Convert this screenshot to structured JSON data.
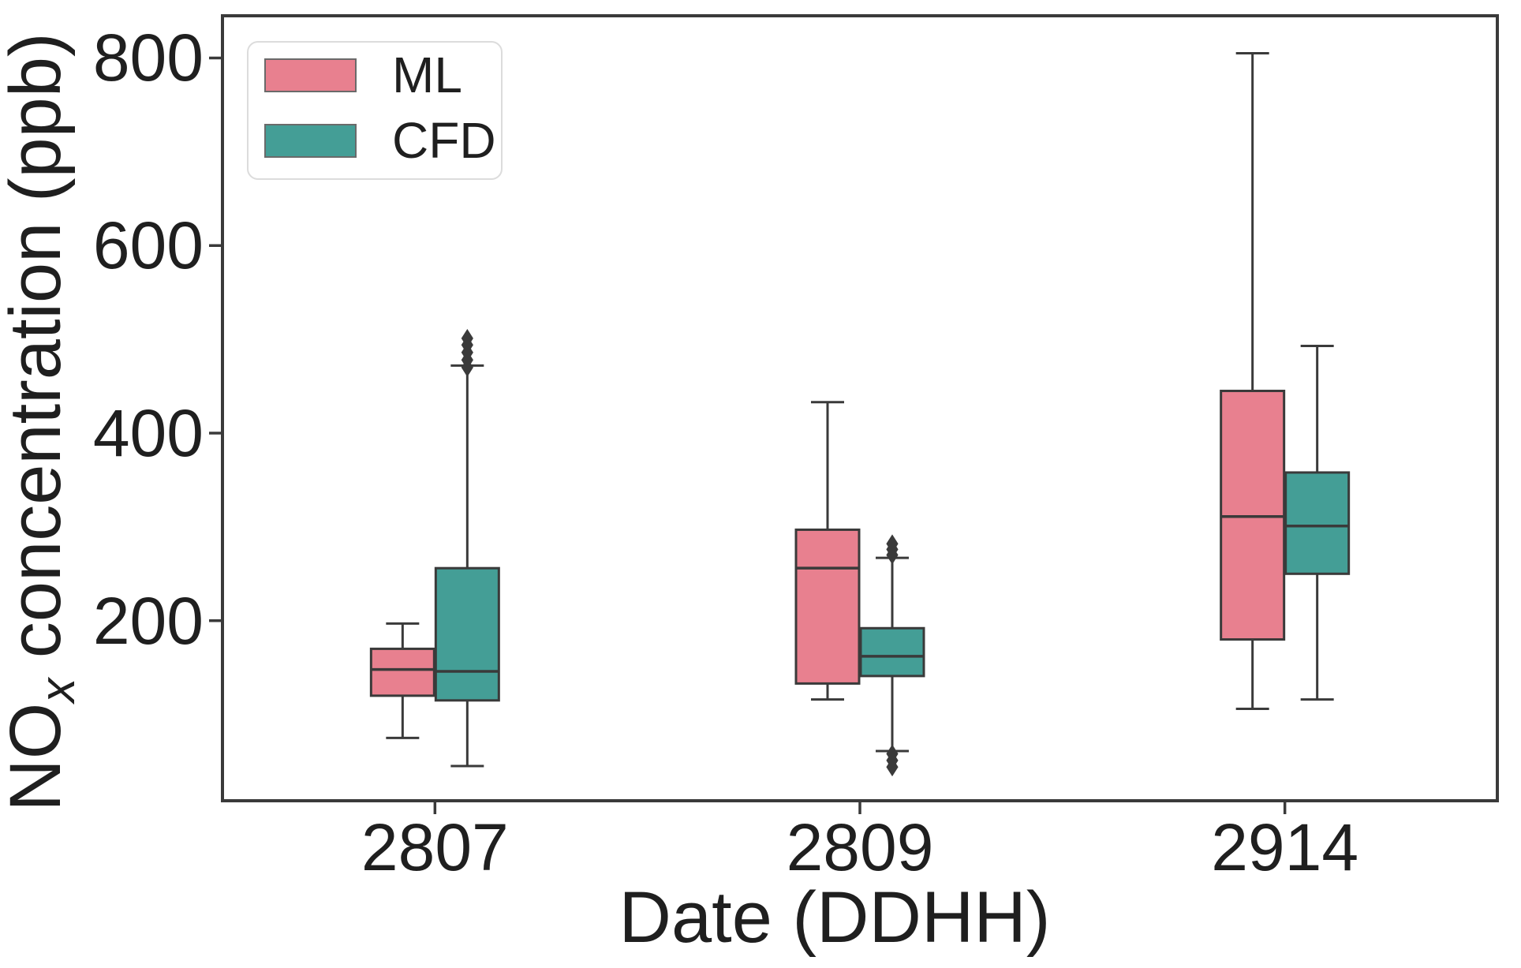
{
  "chart_data": {
    "type": "boxplot",
    "title": "",
    "xlabel": "Date (DDHH)",
    "ylabel": "NOx concentration (ppb)",
    "ylabel_parts": {
      "prefix": "NO",
      "subscript": "x",
      "suffix": " concentration (ppb)"
    },
    "categories": [
      "2807",
      "2809",
      "2914"
    ],
    "yticks": [
      {
        "value": 200,
        "label": "200"
      },
      {
        "value": 400,
        "label": "400"
      },
      {
        "value": 600,
        "label": "600"
      },
      {
        "value": 800,
        "label": "800"
      }
    ],
    "ylim": [
      8,
      845
    ],
    "grid": false,
    "legend": {
      "position": "upper-left",
      "entries": [
        {
          "label": "ML"
        },
        {
          "label": "CFD"
        }
      ]
    },
    "flier_marker": "diamond",
    "edge_color": "#3a3a3a",
    "text_color": "#1f1f1f",
    "series": [
      {
        "name": "ML",
        "color": "#e8808f",
        "boxes": [
          {
            "category": "2807",
            "whislo": 75,
            "q1": 120,
            "med": 148,
            "q3": 170,
            "whishi": 197,
            "fliers": []
          },
          {
            "category": "2809",
            "whislo": 116,
            "q1": 133,
            "med": 256,
            "q3": 297,
            "whishi": 433,
            "fliers": []
          },
          {
            "category": "2914",
            "whislo": 106,
            "q1": 180,
            "med": 311,
            "q3": 445,
            "whishi": 805,
            "fliers": []
          }
        ]
      },
      {
        "name": "CFD",
        "color": "#449e96",
        "boxes": [
          {
            "category": "2807",
            "whislo": 45,
            "q1": 115,
            "med": 146,
            "q3": 256,
            "whishi": 472,
            "fliers": [
              470,
              478,
              486,
              494,
              501
            ]
          },
          {
            "category": "2809",
            "whislo": 61,
            "q1": 141,
            "med": 162,
            "q3": 192,
            "whishi": 267,
            "fliers": [
              270,
              276,
              282,
              58,
              51,
              44
            ]
          },
          {
            "category": "2914",
            "whislo": 116,
            "q1": 250,
            "med": 301,
            "q3": 358,
            "whishi": 493,
            "fliers": []
          }
        ]
      }
    ]
  }
}
